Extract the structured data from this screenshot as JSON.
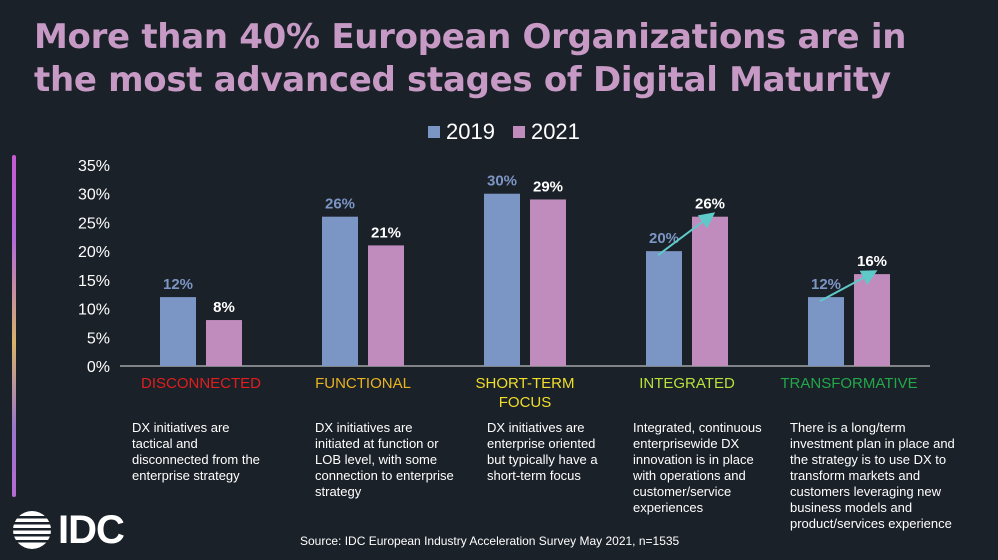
{
  "title": "More than 40% European Organizations are in the most advanced stages of Digital Maturity",
  "source": "Source: IDC European Industry Acceleration Survey May 2021, n=1535",
  "logo": "IDC",
  "colors": {
    "series_2019": "#7b95c4",
    "series_2021": "#c08cbd",
    "arrow": "#5ec9c8",
    "label_2019": "#7b95c4",
    "label_2021": "#ffffff"
  },
  "stages": [
    {
      "label": "DISCONNECTED",
      "color": "#e01e1e",
      "description": "DX initiatives are tactical and disconnected from the enterprise strategy"
    },
    {
      "label": "FUNCTIONAL",
      "color": "#e8b320",
      "description": "DX initiatives are initiated at function or LOB level, with some connection to enterprise strategy"
    },
    {
      "label": "SHORT-TERM FOCUS",
      "color": "#f0df2a",
      "description": "DX initiatives are enterprise oriented but typically have a short-term focus"
    },
    {
      "label": "INTEGRATED",
      "color": "#b7e23a",
      "description": "Integrated, continuous enterprisewide DX innovation is in place with operations and customer/service experiences"
    },
    {
      "label": "TRANSFORMATIVE",
      "color": "#22a84a",
      "description": "There is a long/term investment plan in place and the strategy is to use DX to transform markets and customers leveraging new business models and product/services experience"
    }
  ],
  "chart_data": {
    "type": "bar",
    "categories": [
      "DISCONNECTED",
      "FUNCTIONAL",
      "SHORT-TERM FOCUS",
      "INTEGRATED",
      "TRANSFORMATIVE"
    ],
    "series": [
      {
        "name": "2019",
        "values": [
          12,
          26,
          30,
          20,
          12
        ],
        "labels": [
          "12%",
          "26%",
          "30%",
          "20%",
          "12%"
        ]
      },
      {
        "name": "2021",
        "values": [
          8,
          21,
          29,
          26,
          16
        ],
        "labels": [
          "8%",
          "21%",
          "29%",
          "26%",
          "16%"
        ]
      }
    ],
    "ylim": [
      0,
      35
    ],
    "yticks": [
      "0%",
      "5%",
      "10%",
      "15%",
      "20%",
      "25%",
      "30%",
      "35%"
    ],
    "ytick_values": [
      0,
      5,
      10,
      15,
      20,
      25,
      30,
      35
    ],
    "arrows_on": [
      "INTEGRATED",
      "TRANSFORMATIVE"
    ],
    "legend_position": "top-center",
    "grid": false
  }
}
